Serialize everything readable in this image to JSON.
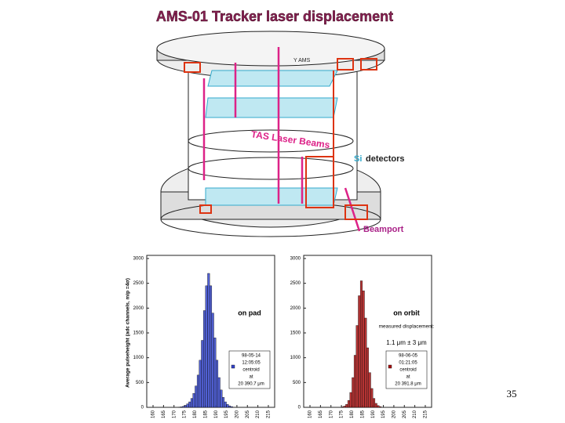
{
  "title": "AMS-01 Tracker laser displacement",
  "diagram": {
    "beam_label": "TAS Laser Beams",
    "si_label": "Si",
    "detectors_label": "detectors",
    "beamport_label": "Beamport",
    "axis_label": "Y AMS"
  },
  "page_number": "35",
  "chart_data": [
    {
      "type": "histogram",
      "y_label": "Average pulseheight (adc channels, mip =4σ)",
      "annotation": "on pad",
      "color": "#3344cc",
      "legend": [
        "98-05-14",
        "12:05:05",
        "centroid",
        "at",
        "20 390.7 μm"
      ],
      "bins": [
        172,
        173,
        174,
        175,
        176,
        177,
        178,
        179,
        180,
        181,
        182,
        183,
        184,
        185,
        186,
        187,
        188,
        189,
        190,
        191,
        192,
        193,
        194,
        195,
        196,
        197,
        198
      ],
      "values": [
        5,
        10,
        20,
        40,
        70,
        110,
        180,
        280,
        430,
        650,
        950,
        1350,
        1950,
        2450,
        2700,
        2450,
        1900,
        1400,
        950,
        600,
        350,
        200,
        110,
        60,
        30,
        15
      ],
      "xlim": [
        157,
        218
      ],
      "xticks": [
        160,
        165,
        170,
        175,
        180,
        185,
        190,
        195,
        200,
        205,
        210,
        215
      ],
      "ylim": [
        0,
        3000
      ],
      "yticks": [
        0,
        500,
        1000,
        1500,
        2000,
        2500,
        3000
      ]
    },
    {
      "type": "histogram",
      "annotation": "on orbit",
      "note": "measured displacement:",
      "displacement": "1.1 μm ± 3 μm",
      "color": "#aa1111",
      "legend": [
        "98-06-05",
        "01:21:05",
        "centroid",
        "at",
        "20 391.8 μm"
      ],
      "bins": [
        175,
        176,
        177,
        178,
        179,
        180,
        181,
        182,
        183,
        184,
        185,
        186,
        187,
        188,
        189,
        190,
        191,
        192,
        193,
        194
      ],
      "values": [
        10,
        25,
        60,
        140,
        300,
        600,
        1050,
        1650,
        2250,
        2550,
        2350,
        1800,
        1200,
        700,
        380,
        180,
        80,
        35,
        15
      ],
      "xlim": [
        157,
        218
      ],
      "xticks": [
        160,
        165,
        170,
        175,
        180,
        185,
        190,
        195,
        200,
        205,
        210,
        215
      ],
      "ylim": [
        0,
        3000
      ],
      "yticks": [
        0,
        500,
        1000,
        1500,
        2000,
        2500,
        3000
      ]
    }
  ]
}
